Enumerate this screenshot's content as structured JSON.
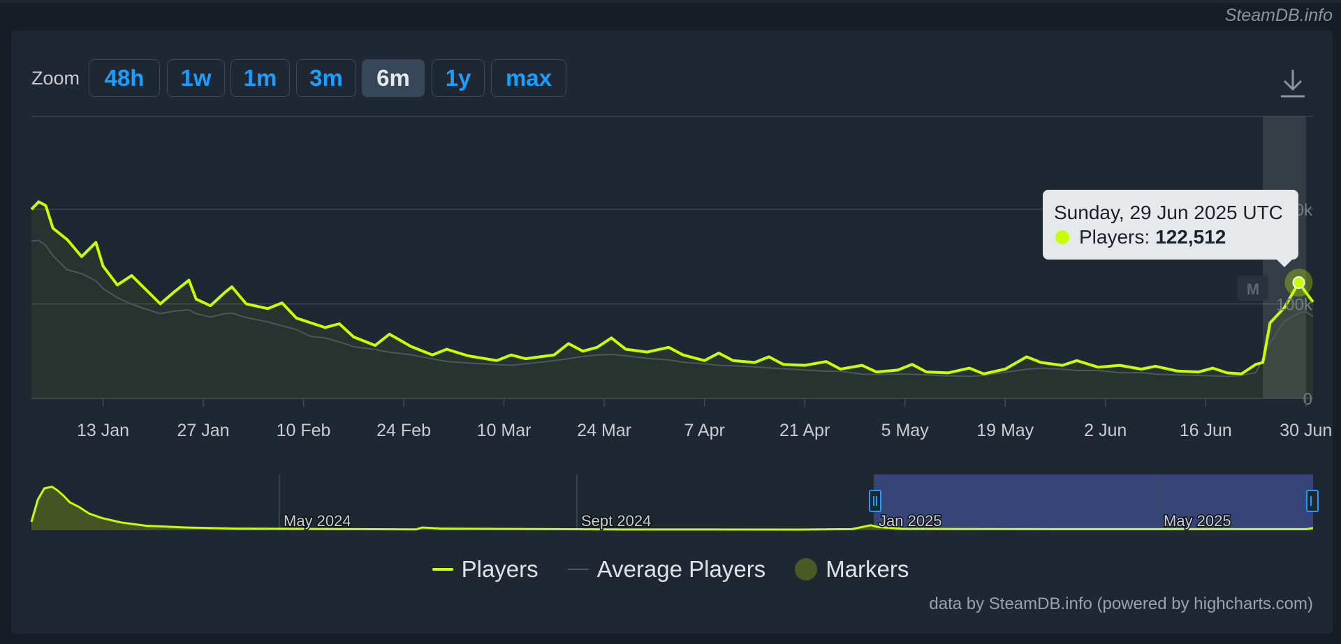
{
  "watermark": "SteamDB.info",
  "zoom": {
    "label": "Zoom",
    "buttons": [
      "48h",
      "1w",
      "1m",
      "3m",
      "6m",
      "1y",
      "max"
    ],
    "active": "6m"
  },
  "tooltip": {
    "date": "Sunday, 29 Jun 2025 UTC",
    "series": "Players:",
    "value": "122,512"
  },
  "legend": {
    "players": "Players",
    "average": "Average Players",
    "markers": "Markers"
  },
  "credits": "data by SteamDB.info (powered by highcharts.com)",
  "colors": {
    "players": "#c5ff00",
    "average": "#4b5661",
    "markers": "#4a5a22",
    "navigator_selection": "#3c4a86",
    "zoom_active": "#37475a",
    "zoom_text": "#1a9fff"
  },
  "chart_data": {
    "type": "line",
    "y_ticks": [
      "0",
      "100k",
      "200k"
    ],
    "ylim": [
      0,
      200000
    ],
    "x_ticks": [
      "13 Jan",
      "27 Jan",
      "10 Feb",
      "24 Feb",
      "10 Mar",
      "24 Mar",
      "7 Apr",
      "21 Apr",
      "5 May",
      "19 May",
      "2 Jun",
      "16 Jun",
      "30 Jun"
    ],
    "x_range": [
      "2025-01-03",
      "2025-07-01"
    ],
    "series": [
      {
        "name": "Players",
        "points": [
          [
            "2025-01-03",
            200000
          ],
          [
            "2025-01-04",
            208000
          ],
          [
            "2025-01-05",
            204000
          ],
          [
            "2025-01-06",
            180000
          ],
          [
            "2025-01-08",
            168000
          ],
          [
            "2025-01-10",
            150000
          ],
          [
            "2025-01-12",
            165000
          ],
          [
            "2025-01-13",
            140000
          ],
          [
            "2025-01-15",
            120000
          ],
          [
            "2025-01-17",
            130000
          ],
          [
            "2025-01-19",
            115000
          ],
          [
            "2025-01-21",
            100000
          ],
          [
            "2025-01-23",
            113000
          ],
          [
            "2025-01-25",
            125000
          ],
          [
            "2025-01-26",
            105000
          ],
          [
            "2025-01-28",
            98000
          ],
          [
            "2025-01-30",
            112000
          ],
          [
            "2025-01-31",
            118000
          ],
          [
            "2025-02-02",
            100000
          ],
          [
            "2025-02-05",
            95000
          ],
          [
            "2025-02-07",
            101000
          ],
          [
            "2025-02-09",
            85000
          ],
          [
            "2025-02-11",
            80000
          ],
          [
            "2025-02-13",
            75000
          ],
          [
            "2025-02-15",
            79000
          ],
          [
            "2025-02-17",
            65000
          ],
          [
            "2025-02-20",
            56000
          ],
          [
            "2025-02-22",
            68000
          ],
          [
            "2025-02-25",
            55000
          ],
          [
            "2025-02-28",
            46000
          ],
          [
            "2025-03-02",
            52000
          ],
          [
            "2025-03-05",
            45000
          ],
          [
            "2025-03-09",
            40000
          ],
          [
            "2025-03-11",
            46000
          ],
          [
            "2025-03-13",
            42000
          ],
          [
            "2025-03-17",
            46000
          ],
          [
            "2025-03-19",
            58000
          ],
          [
            "2025-03-21",
            50000
          ],
          [
            "2025-03-23",
            54000
          ],
          [
            "2025-03-25",
            64000
          ],
          [
            "2025-03-27",
            52000
          ],
          [
            "2025-03-30",
            49000
          ],
          [
            "2025-04-02",
            54000
          ],
          [
            "2025-04-04",
            46000
          ],
          [
            "2025-04-07",
            40000
          ],
          [
            "2025-04-09",
            48000
          ],
          [
            "2025-04-11",
            40000
          ],
          [
            "2025-04-14",
            38000
          ],
          [
            "2025-04-16",
            44000
          ],
          [
            "2025-04-18",
            36000
          ],
          [
            "2025-04-21",
            35000
          ],
          [
            "2025-04-24",
            39000
          ],
          [
            "2025-04-26",
            31000
          ],
          [
            "2025-04-29",
            35000
          ],
          [
            "2025-05-01",
            28000
          ],
          [
            "2025-05-04",
            30000
          ],
          [
            "2025-05-06",
            36000
          ],
          [
            "2025-05-08",
            28000
          ],
          [
            "2025-05-11",
            27000
          ],
          [
            "2025-05-14",
            32000
          ],
          [
            "2025-05-16",
            26000
          ],
          [
            "2025-05-19",
            31000
          ],
          [
            "2025-05-22",
            44000
          ],
          [
            "2025-05-24",
            38000
          ],
          [
            "2025-05-27",
            35000
          ],
          [
            "2025-05-29",
            40000
          ],
          [
            "2025-06-01",
            33000
          ],
          [
            "2025-06-04",
            35000
          ],
          [
            "2025-06-07",
            31000
          ],
          [
            "2025-06-09",
            34000
          ],
          [
            "2025-06-12",
            29000
          ],
          [
            "2025-06-15",
            28000
          ],
          [
            "2025-06-17",
            32000
          ],
          [
            "2025-06-19",
            27000
          ],
          [
            "2025-06-21",
            26000
          ],
          [
            "2025-06-23",
            36000
          ],
          [
            "2025-06-24",
            38000
          ],
          [
            "2025-06-25",
            80000
          ],
          [
            "2025-06-27",
            96000
          ],
          [
            "2025-06-29",
            122512
          ],
          [
            "2025-06-30",
            112000
          ],
          [
            "2025-07-01",
            102000
          ]
        ]
      }
    ],
    "navigator": {
      "labels": [
        "May 2024",
        "Sept 2024",
        "Jan 2025",
        "May 2025"
      ]
    },
    "legend_position": "bottom-center",
    "grid": true
  }
}
